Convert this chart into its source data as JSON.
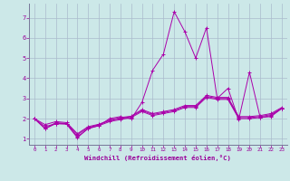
{
  "xlabel": "Windchill (Refroidissement éolien,°C)",
  "background_color": "#cce8e8",
  "grid_color": "#aabbcc",
  "line_color": "#aa00aa",
  "xlim": [
    -0.5,
    23.5
  ],
  "ylim": [
    0.7,
    7.7
  ],
  "yticks": [
    1,
    2,
    3,
    4,
    5,
    6,
    7
  ],
  "xticks": [
    0,
    1,
    2,
    3,
    4,
    5,
    6,
    7,
    8,
    9,
    10,
    11,
    12,
    13,
    14,
    15,
    16,
    17,
    18,
    19,
    20,
    21,
    22,
    23
  ],
  "series": [
    [
      2.0,
      1.5,
      1.8,
      1.75,
      1.1,
      1.5,
      1.65,
      1.85,
      1.95,
      2.05,
      2.35,
      2.15,
      2.25,
      2.35,
      2.55,
      2.55,
      3.05,
      2.95,
      2.95,
      2.0,
      2.0,
      2.05,
      2.15,
      2.5
    ],
    [
      2.0,
      1.6,
      1.75,
      1.75,
      1.2,
      1.55,
      1.7,
      1.9,
      2.0,
      2.1,
      2.4,
      2.2,
      2.3,
      2.4,
      2.6,
      2.6,
      3.1,
      3.0,
      3.0,
      2.05,
      2.05,
      2.1,
      2.2,
      2.5
    ],
    [
      2.0,
      1.7,
      1.85,
      1.8,
      1.25,
      1.6,
      1.72,
      1.93,
      2.05,
      2.12,
      2.45,
      2.25,
      2.35,
      2.45,
      2.65,
      2.65,
      3.15,
      3.05,
      3.05,
      2.1,
      2.1,
      2.15,
      2.25,
      2.55
    ],
    [
      2.0,
      1.5,
      1.75,
      1.72,
      1.05,
      1.52,
      1.65,
      2.0,
      2.1,
      1.98,
      2.8,
      4.4,
      5.2,
      7.3,
      6.3,
      5.0,
      6.5,
      3.0,
      3.5,
      1.95,
      4.3,
      2.05,
      2.1,
      2.5
    ]
  ]
}
